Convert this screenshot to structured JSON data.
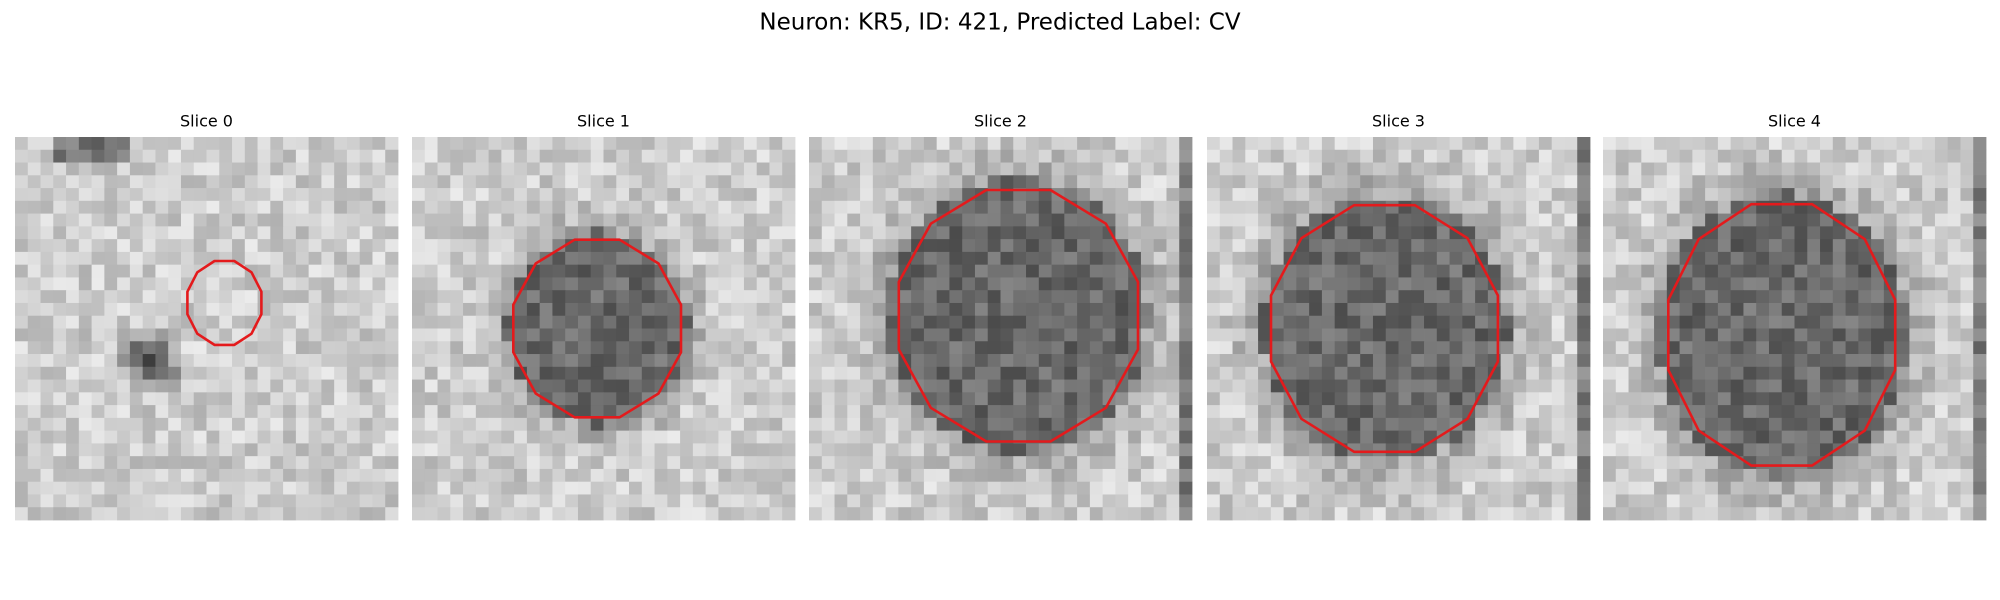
{
  "title": "Neuron: KR5, ID: 421, Predicted Label: CV",
  "panels": [
    {
      "title": "Slice 0"
    },
    {
      "title": "Slice 1"
    },
    {
      "title": "Slice 2"
    },
    {
      "title": "Slice 3"
    },
    {
      "title": "Slice 4"
    }
  ]
}
